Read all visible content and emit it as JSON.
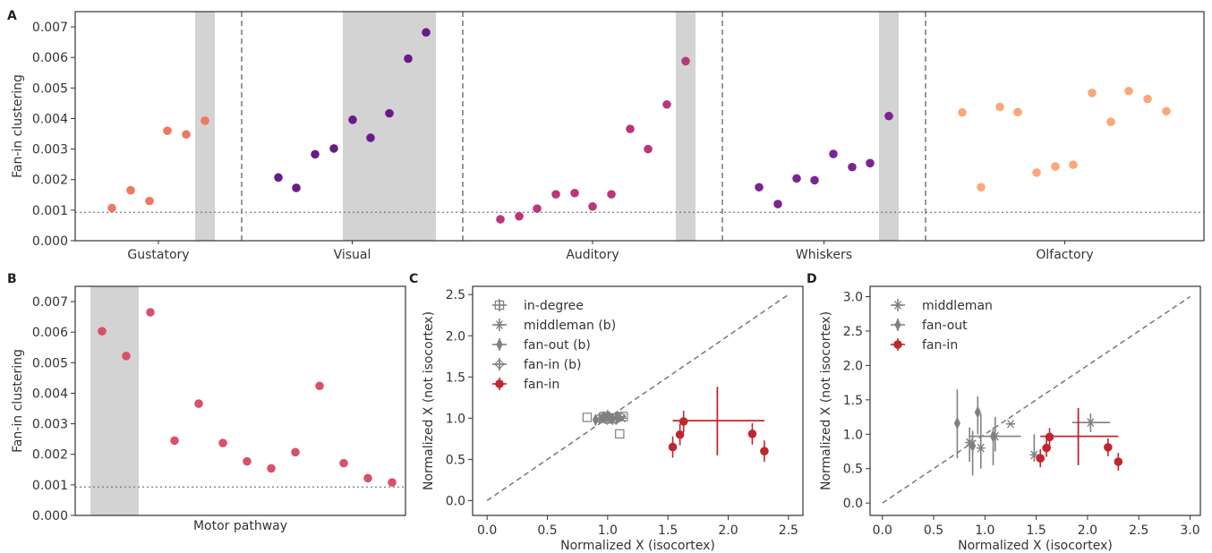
{
  "chart_data": [
    {
      "panel": "A",
      "type": "scatter",
      "ylabel": "Fan-in clustering",
      "ylim": [
        0,
        0.0075
      ],
      "yticks": [
        "0.000",
        "0.001",
        "0.002",
        "0.003",
        "0.004",
        "0.005",
        "0.006",
        "0.007"
      ],
      "baseline": 0.00093,
      "groups": [
        {
          "name": "Gustatory",
          "color": "#f07860",
          "values": [
            0.00107,
            0.00165,
            0.0013,
            0.0036,
            0.00348,
            0.00393
          ],
          "highlight_index": 5
        },
        {
          "name": "Visual",
          "color": "#6a1a88",
          "values": [
            0.00207,
            0.00173,
            0.00283,
            0.00302,
            0.00396,
            0.00337,
            0.00417,
            0.00596,
            0.00682
          ],
          "highlight_index": [
            4,
            8
          ]
        },
        {
          "name": "Auditory",
          "color": "#b8377c",
          "values": [
            0.0007,
            0.0008,
            0.00105,
            0.00152,
            0.00156,
            0.00112,
            0.00152,
            0.00366,
            0.003,
            0.00446,
            0.00588
          ],
          "highlight_index": 10
        },
        {
          "name": "Whiskers",
          "color": "#7a2590",
          "values": [
            0.00175,
            0.0012,
            0.00204,
            0.00198,
            0.00284,
            0.00241,
            0.00254,
            0.00408
          ],
          "highlight_index": 7
        },
        {
          "name": "Olfactory",
          "color": "#f9a878",
          "values": [
            0.0042,
            0.00175,
            0.00438,
            0.00421,
            0.00223,
            0.00243,
            0.00249,
            0.00484,
            0.00389,
            0.0049,
            0.00464,
            0.00424
          ],
          "highlight_index": null
        }
      ]
    },
    {
      "panel": "B",
      "type": "scatter",
      "xlabel": "Motor pathway",
      "ylabel": "Fan-in clustering",
      "ylim": [
        0,
        0.0075
      ],
      "yticks": [
        "0.000",
        "0.001",
        "0.002",
        "0.003",
        "0.004",
        "0.005",
        "0.006",
        "0.007"
      ],
      "baseline": 0.00093,
      "color": "#d9506a",
      "values": [
        0.00603,
        0.00522,
        0.00665,
        0.00245,
        0.00366,
        0.00237,
        0.00177,
        0.00154,
        0.00207,
        0.00424,
        0.00171,
        0.00122,
        0.00108
      ],
      "highlight_index": [
        0,
        1
      ]
    },
    {
      "panel": "C",
      "type": "scatter",
      "xlabel": "Normalized X (isocortex)",
      "ylabel": "Normalized X (not isocortex)",
      "xlim": [
        -0.12,
        2.62
      ],
      "ylim": [
        -0.18,
        2.6
      ],
      "xticks": [
        "0.0",
        "0.5",
        "1.0",
        "1.5",
        "2.0",
        "2.5"
      ],
      "yticks": [
        "0.0",
        "0.5",
        "1.0",
        "1.5",
        "2.0",
        "2.5"
      ],
      "legend": [
        "in-degree",
        "middleman (b)",
        "fan-out (b)",
        "fan-in (b)",
        "fan-in"
      ],
      "legend_position": "upper-left",
      "series": [
        {
          "name": "in-degree",
          "marker": "square",
          "color": "#808080",
          "points": [
            [
              0.83,
              1.01
            ],
            [
              0.97,
              1.02
            ],
            [
              1.01,
              0.99
            ],
            [
              1.05,
              1.0
            ],
            [
              1.1,
              0.81
            ],
            [
              1.13,
              1.02
            ]
          ]
        },
        {
          "name": "middleman (b)",
          "marker": "star",
          "color": "#808080",
          "points": [
            [
              0.95,
              1.0
            ],
            [
              0.99,
              1.03
            ],
            [
              1.02,
              0.97
            ],
            [
              1.06,
              1.01
            ],
            [
              1.12,
              1.0
            ]
          ]
        },
        {
          "name": "fan-out (b)",
          "marker": "thin-diamond",
          "color": "#808080",
          "points": [
            [
              0.9,
              0.98
            ],
            [
              0.96,
              1.01
            ],
            [
              1.0,
              1.03
            ],
            [
              1.04,
              0.99
            ],
            [
              1.08,
              1.02
            ]
          ]
        },
        {
          "name": "fan-in (b)",
          "marker": "diamond-cross",
          "color": "#808080",
          "points": [
            [
              0.93,
              1.0
            ],
            [
              0.98,
              0.99
            ],
            [
              1.02,
              1.01
            ],
            [
              1.07,
              0.98
            ],
            [
              1.11,
              1.02
            ]
          ]
        },
        {
          "name": "fan-in",
          "marker": "circle",
          "color": "#c0262d",
          "points": [
            [
              1.54,
              0.65
            ],
            [
              1.6,
              0.8
            ],
            [
              1.63,
              0.96
            ],
            [
              2.2,
              0.81
            ],
            [
              2.3,
              0.6
            ]
          ],
          "mean": [
            1.91,
            0.97
          ],
          "mean_xerr": [
            1.54,
            2.3
          ],
          "mean_yerr": [
            0.55,
            1.38
          ]
        }
      ]
    },
    {
      "panel": "D",
      "type": "scatter",
      "xlabel": "Normalized X (isocortex)",
      "ylabel": "Normalized X (not isocortex)",
      "xlim": [
        -0.12,
        3.1
      ],
      "ylim": [
        -0.18,
        3.15
      ],
      "xticks": [
        "0.0",
        "0.5",
        "1.0",
        "1.5",
        "2.0",
        "2.5",
        "3.0"
      ],
      "yticks": [
        "0.0",
        "0.5",
        "1.0",
        "1.5",
        "2.0",
        "2.5",
        "3.0"
      ],
      "legend": [
        "middleman",
        "fan-out",
        "fan-in"
      ],
      "legend_position": "upper-left",
      "series": [
        {
          "name": "middleman",
          "marker": "star",
          "color": "#808080",
          "points": [
            [
              0.85,
              0.88
            ],
            [
              0.96,
              0.8
            ],
            [
              1.1,
              0.97
            ],
            [
              1.25,
              1.15
            ],
            [
              1.48,
              0.7
            ],
            [
              2.03,
              1.17
            ]
          ],
          "xerr": [
            null,
            null,
            [
              0.85,
              1.35
            ],
            null,
            null,
            [
              1.85,
              2.22
            ]
          ],
          "yerr": [
            [
              0.6,
              1.1
            ],
            [
              0.5,
              1.3
            ],
            [
              0.75,
              1.25
            ],
            null,
            [
              0.6,
              1.0
            ],
            [
              1.03,
              1.3
            ]
          ]
        },
        {
          "name": "fan-out",
          "marker": "thin-diamond",
          "color": "#808080",
          "points": [
            [
              0.73,
              1.16
            ],
            [
              0.88,
              0.83
            ],
            [
              0.93,
              1.32
            ],
            [
              1.08,
              0.97
            ]
          ],
          "yerr": [
            [
              0.65,
              1.65
            ],
            [
              0.4,
              1.05
            ],
            [
              1.0,
              1.55
            ],
            [
              0.55,
              1.1
            ]
          ]
        },
        {
          "name": "fan-in",
          "marker": "circle",
          "color": "#c0262d",
          "points": [
            [
              1.54,
              0.65
            ],
            [
              1.6,
              0.8
            ],
            [
              1.63,
              0.96
            ],
            [
              2.2,
              0.81
            ],
            [
              2.3,
              0.6
            ]
          ],
          "mean": [
            1.91,
            0.97
          ],
          "mean_xerr": [
            1.54,
            2.3
          ],
          "mean_yerr": [
            0.55,
            1.38
          ]
        }
      ]
    }
  ]
}
